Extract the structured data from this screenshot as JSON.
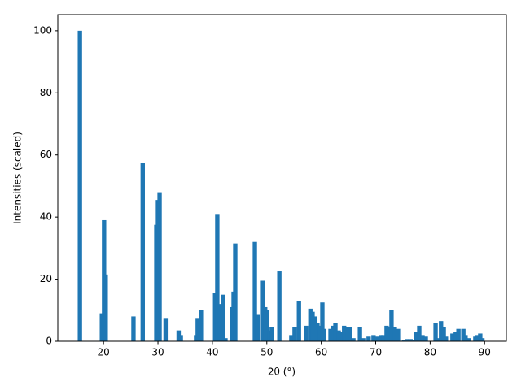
{
  "chart_data": {
    "type": "bar",
    "xlabel": "2θ (°)",
    "ylabel": "Intensities (scaled)",
    "color": "#1f77b4",
    "x": [
      15.66,
      19.7,
      20.1,
      20.4,
      25.5,
      27.2,
      29.7,
      30.0,
      30.3,
      31.4,
      33.8,
      34.2,
      37.0,
      37.3,
      37.9,
      40.5,
      40.9,
      41.4,
      42.0,
      42.4,
      43.6,
      43.9,
      44.2,
      47.8,
      48.3,
      49.3,
      49.7,
      50.0,
      50.5,
      50.9,
      52.3,
      54.5,
      55.1,
      55.9,
      57.2,
      58.0,
      58.4,
      58.9,
      59.3,
      59.8,
      60.2,
      60.5,
      61.7,
      62.2,
      62.6,
      63.2,
      63.6,
      64.2,
      64.8,
      65.3,
      65.9,
      67.1,
      67.7,
      68.7,
      69.6,
      70.4,
      71.0,
      71.4,
      72.0,
      72.5,
      72.9,
      73.5,
      74.1,
      75.2,
      75.8,
      76.4,
      77.0,
      77.4,
      78.0,
      78.6,
      79.2,
      81.0,
      81.4,
      82.0,
      82.5,
      82.9,
      84.1,
      84.7,
      85.2,
      86.1,
      86.5,
      87.1,
      88.3,
      88.7,
      89.2,
      89.6
    ],
    "values": [
      100,
      9,
      39,
      21.5,
      8,
      57.5,
      37.5,
      45.5,
      48,
      7.5,
      3.5,
      2,
      2,
      7.5,
      10,
      15.5,
      41,
      12,
      15,
      1,
      11,
      16,
      31.5,
      32,
      8.5,
      19.5,
      11,
      10,
      3.5,
      4.5,
      22.5,
      2,
      4.5,
      13,
      5,
      10.5,
      9.5,
      8,
      6,
      5,
      12.5,
      4,
      4,
      5,
      6,
      3.5,
      3,
      5,
      4.5,
      4.5,
      1,
      4.5,
      1,
      1.5,
      2,
      1.5,
      2,
      2,
      5,
      4.5,
      10,
      4.5,
      4,
      0.5,
      0.7,
      0.7,
      0.5,
      3,
      5,
      2,
      1.5,
      6,
      1,
      6.5,
      4.5,
      1.5,
      2.5,
      3,
      4,
      4,
      2,
      1,
      1.5,
      2,
      2.5,
      1
    ],
    "xlim": [
      11.6,
      94.0
    ],
    "ylim": [
      0,
      105.2
    ],
    "xticks": [
      20,
      30,
      40,
      50,
      60,
      70,
      80,
      90
    ],
    "yticks": [
      0,
      20,
      40,
      60,
      80,
      100
    ]
  }
}
